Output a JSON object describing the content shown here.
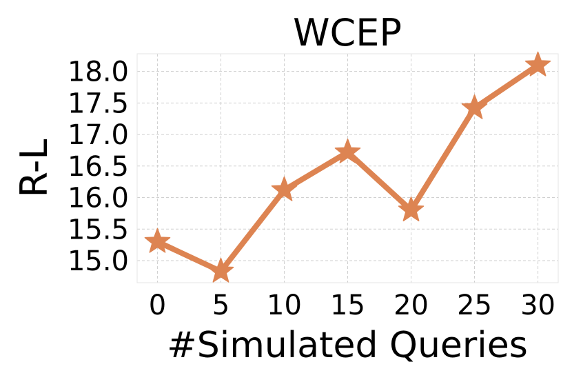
{
  "chart_data": {
    "type": "line",
    "title": "WCEP",
    "xlabel": "#Simulated Queries",
    "ylabel": "R-L",
    "x": [
      0,
      5,
      10,
      15,
      20,
      25,
      30
    ],
    "series": [
      {
        "values": [
          15.3,
          14.83,
          16.12,
          16.72,
          15.8,
          17.42,
          18.1
        ]
      }
    ],
    "xticks": [
      "0",
      "5",
      "10",
      "15",
      "20",
      "25",
      "30"
    ],
    "yticks": [
      "15.0",
      "15.5",
      "16.0",
      "16.5",
      "17.0",
      "17.5",
      "18.0"
    ],
    "xlim": [
      -1.6,
      31.6
    ],
    "ylim": [
      14.65,
      18.28
    ],
    "grid": true,
    "marker": "star",
    "color": "#dd8452"
  }
}
